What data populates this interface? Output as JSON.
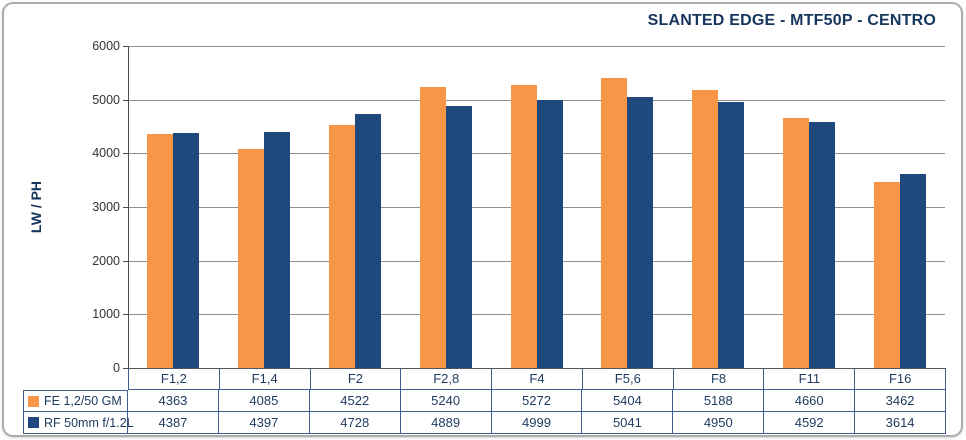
{
  "title": "SLANTED EDGE - MTF50P - CENTRO",
  "colors": {
    "series1": "#F79646",
    "series2": "#1F497D",
    "title_text": "#17365D",
    "gridline": "#8F8F8F",
    "axis_line": "#4D4D4D",
    "table_border": "#3E5E8E",
    "table_text": "#1E3A5F",
    "frame_border": "#ACACAC"
  },
  "chart_data": {
    "type": "bar",
    "title": "SLANTED EDGE - MTF50P - CENTRO",
    "xlabel": "",
    "ylabel": "LW / PH",
    "ylim": [
      0,
      6000
    ],
    "y_ticks": [
      0,
      1000,
      2000,
      3000,
      4000,
      5000,
      6000
    ],
    "grid": true,
    "legend_position": "table-left",
    "categories": [
      "F1,2",
      "F1,4",
      "F2",
      "F2,8",
      "F4",
      "F5,6",
      "F8",
      "F11",
      "F16"
    ],
    "series": [
      {
        "name": "FE 1,2/50 GM",
        "color": "#F79646",
        "values": [
          4363,
          4085,
          4522,
          5240,
          5272,
          5404,
          5188,
          4660,
          3462
        ]
      },
      {
        "name": "RF 50mm f/1.2L",
        "color": "#1F497D",
        "values": [
          4387,
          4397,
          4728,
          4889,
          4999,
          5041,
          4950,
          4592,
          3614
        ]
      }
    ]
  }
}
